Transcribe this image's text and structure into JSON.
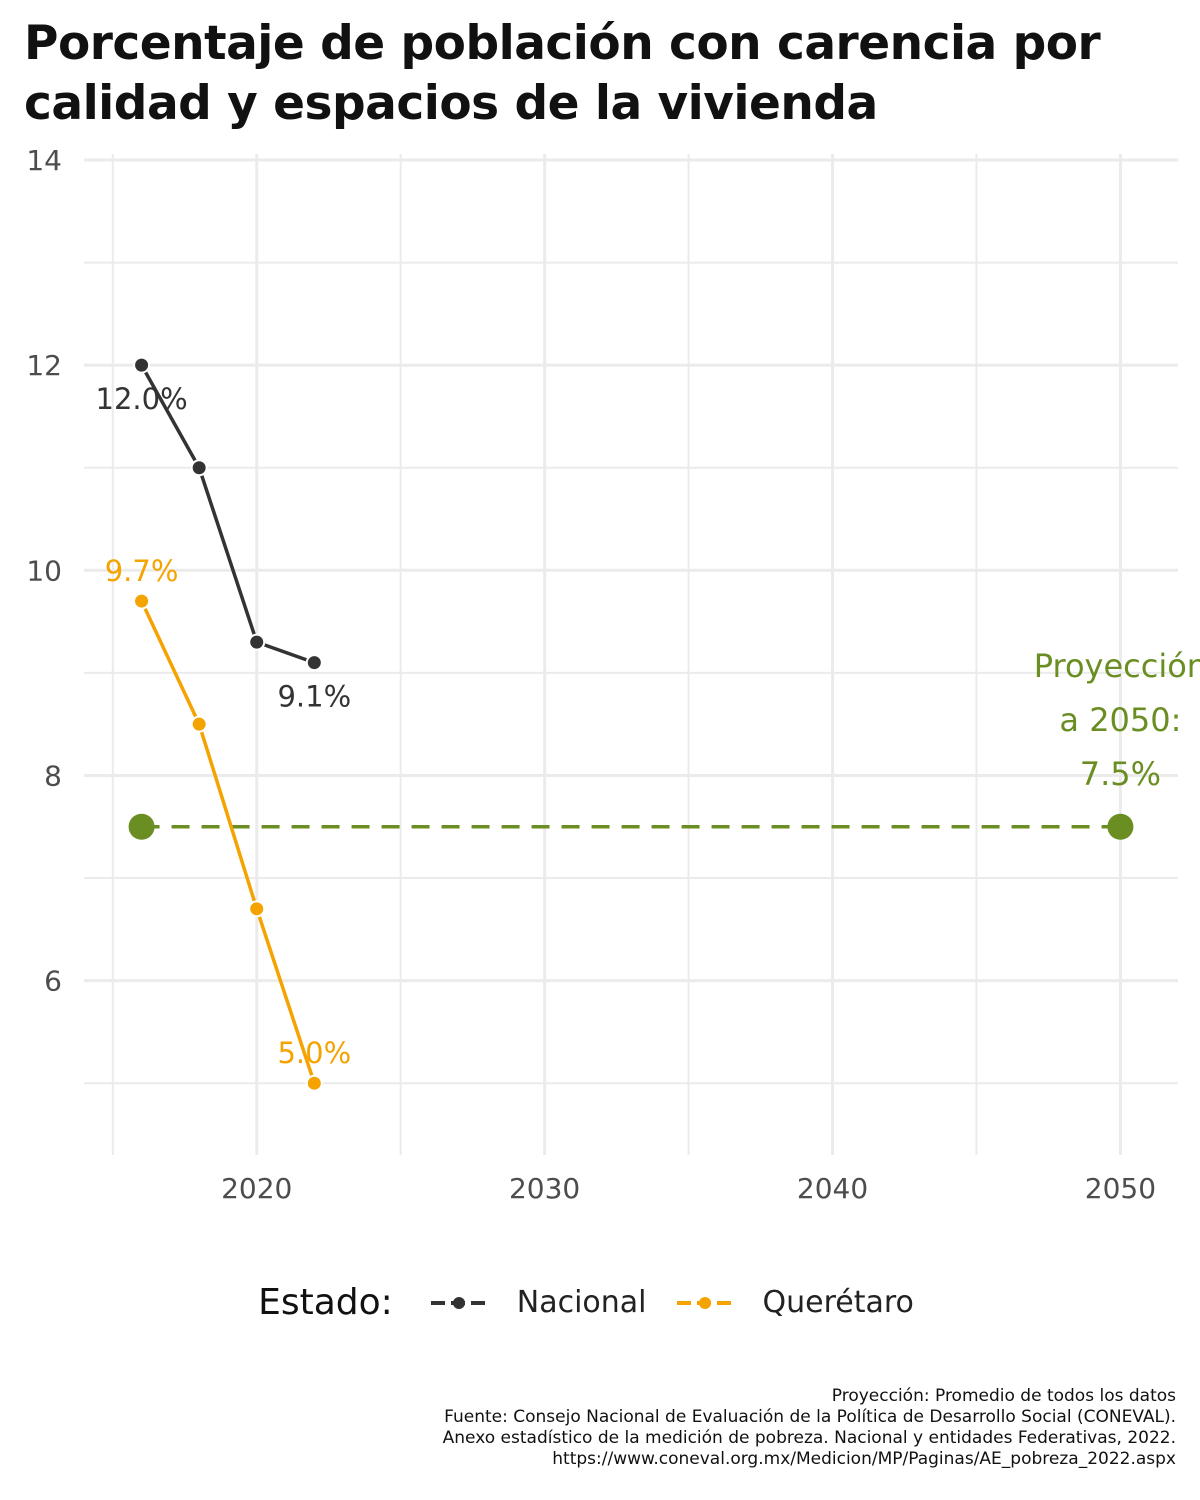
{
  "title": "Porcentaje de población con carencia por calidad y espacios de la vivienda",
  "chart_data": {
    "type": "line",
    "xlim": [
      2014,
      2052
    ],
    "ylim": [
      4.3,
      14
    ],
    "x_ticks": [
      2020,
      2030,
      2040,
      2050
    ],
    "y_ticks": [
      6,
      8,
      10,
      12,
      14
    ],
    "grid": true,
    "series": [
      {
        "name": "Nacional",
        "color": "#333333",
        "x": [
          2016,
          2018,
          2020,
          2022
        ],
        "y": [
          12.0,
          11.0,
          9.3,
          9.1
        ],
        "labels": [
          {
            "x": 2016,
            "y": 12.0,
            "text": "12.0%",
            "pos": "below"
          },
          {
            "x": 2022,
            "y": 9.1,
            "text": "9.1%",
            "pos": "below"
          }
        ]
      },
      {
        "name": "Querétaro",
        "color": "#f5a300",
        "x": [
          2016,
          2018,
          2020,
          2022
        ],
        "y": [
          9.7,
          8.5,
          6.7,
          5.0
        ],
        "labels": [
          {
            "x": 2016,
            "y": 9.7,
            "text": "9.7%",
            "pos": "above"
          },
          {
            "x": 2022,
            "y": 5.0,
            "text": "5.0%",
            "pos": "above"
          }
        ]
      }
    ],
    "projection": {
      "color": "#6b8e23",
      "x": [
        2016,
        2050
      ],
      "y": [
        7.5,
        7.5
      ],
      "label_lines": [
        "Proyección",
        "a 2050:",
        "7.5%"
      ]
    }
  },
  "legend": {
    "title": "Estado:",
    "items": [
      {
        "label": "Nacional",
        "color": "#333333"
      },
      {
        "label": "Querétaro",
        "color": "#f5a300"
      }
    ],
    "position": "bottom"
  },
  "caption": [
    "Proyección: Promedio de todos los datos",
    "Fuente: Consejo Nacional de Evaluación de la Política de Desarrollo Social (CONEVAL).",
    "Anexo estadístico de la medición de pobreza. Nacional y entidades Federativas, 2022.",
    "https://www.coneval.org.mx/Medicion/MP/Paginas/AE_pobreza_2022.aspx"
  ]
}
